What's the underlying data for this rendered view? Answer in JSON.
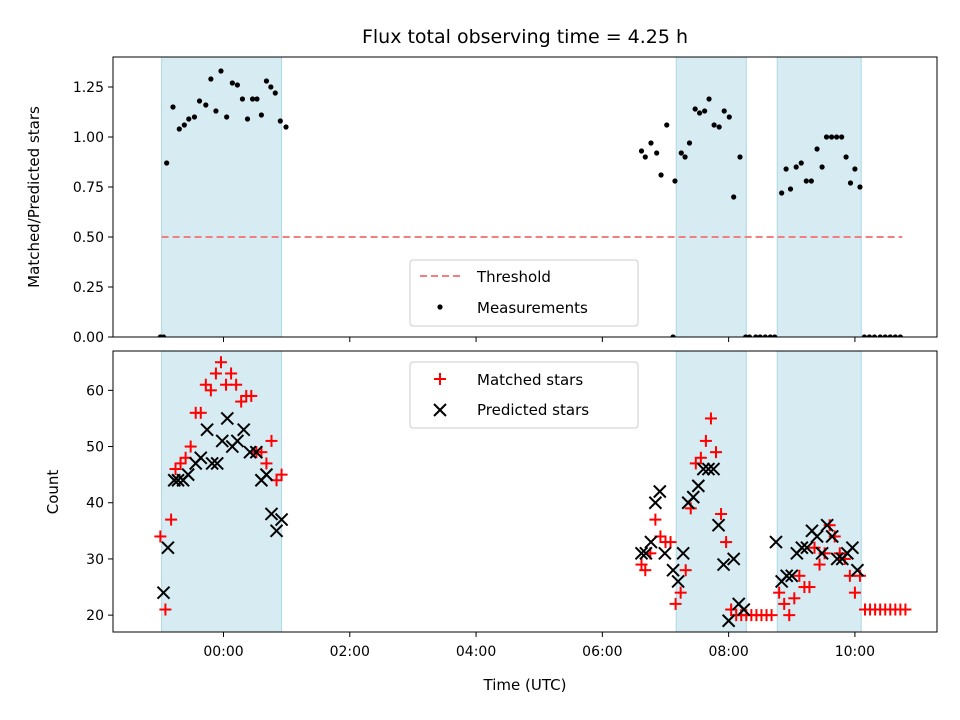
{
  "chart_data": [
    {
      "type": "scatter",
      "title": "Flux total observing time = 4.25 h",
      "ylabel": "Matched/Predicted stars",
      "xlabel": "",
      "xlim": [
        -1.75,
        11.3
      ],
      "ylim": [
        0.0,
        1.4
      ],
      "yticks": [
        0.0,
        0.25,
        0.5,
        0.75,
        1.0,
        1.25
      ],
      "ytick_labels": [
        "0.00",
        "0.25",
        "0.50",
        "0.75",
        "1.00",
        "1.25"
      ],
      "xticks": [
        0,
        2,
        4,
        6,
        8,
        10
      ],
      "legend": {
        "position": "lower-center",
        "entries": [
          "Threshold",
          "Measurements"
        ]
      },
      "spans": [
        [
          -0.98,
          0.92
        ],
        [
          7.17,
          8.28
        ],
        [
          8.77,
          10.1
        ]
      ],
      "threshold": {
        "name": "Threshold",
        "value": 0.5,
        "x_range": [
          -0.98,
          10.75
        ],
        "color": "#f08080"
      },
      "series": [
        {
          "name": "Measurements",
          "color": "#000000",
          "x": [
            -0.95,
            -0.9,
            -0.8,
            -0.7,
            -0.62,
            -0.55,
            -0.46,
            -0.38,
            -0.28,
            -0.2,
            -0.12,
            -0.04,
            0.05,
            0.14,
            0.22,
            0.3,
            0.38,
            0.46,
            0.53,
            0.6,
            0.68,
            0.75,
            0.82,
            0.9,
            0.99,
            6.62,
            6.68,
            6.77,
            6.86,
            6.93,
            7.02,
            7.15,
            7.25,
            7.31,
            7.38,
            7.47,
            7.54,
            7.62,
            7.69,
            7.77,
            7.85,
            7.93,
            8.01,
            8.08,
            8.18,
            8.27,
            8.84,
            8.91,
            8.98,
            9.07,
            9.15,
            9.23,
            9.31,
            9.4,
            9.48,
            9.55,
            9.63,
            9.71,
            9.79,
            9.86,
            9.93,
            10.0,
            10.08
          ],
          "y": [
            0.0,
            0.87,
            1.15,
            1.04,
            1.06,
            1.09,
            1.1,
            1.18,
            1.16,
            1.29,
            1.13,
            1.33,
            1.1,
            1.27,
            1.26,
            1.19,
            1.09,
            1.19,
            1.19,
            1.11,
            1.28,
            1.25,
            1.22,
            1.08,
            1.05,
            0.93,
            0.9,
            0.97,
            0.92,
            0.81,
            1.06,
            0.78,
            0.92,
            0.9,
            0.97,
            1.14,
            1.12,
            1.13,
            1.19,
            1.06,
            1.05,
            1.13,
            1.1,
            0.7,
            0.9,
            0.0,
            0.72,
            0.84,
            0.74,
            0.85,
            0.87,
            0.78,
            0.78,
            0.94,
            0.85,
            1.0,
            1.0,
            1.0,
            1.0,
            0.9,
            0.77,
            0.84,
            0.75
          ]
        },
        {
          "name": "Measurements (zero)",
          "color": "#000000",
          "x": [
            -1.0,
            7.12,
            8.33,
            8.43,
            8.5,
            8.58,
            8.66,
            8.73,
            10.15,
            10.23,
            10.31,
            10.4,
            10.48,
            10.56,
            10.64,
            10.72
          ],
          "y": [
            0,
            0,
            0,
            0,
            0,
            0,
            0,
            0,
            0,
            0,
            0,
            0,
            0,
            0,
            0,
            0
          ]
        }
      ]
    },
    {
      "type": "scatter",
      "title": "",
      "ylabel": "Count",
      "xlabel": "Time (UTC)",
      "xlim": [
        -1.75,
        11.3
      ],
      "ylim": [
        17,
        67
      ],
      "yticks": [
        20,
        30,
        40,
        50,
        60
      ],
      "ytick_labels": [
        "20",
        "30",
        "40",
        "50",
        "60"
      ],
      "xticks": [
        0,
        2,
        4,
        6,
        8,
        10
      ],
      "xtick_labels": [
        "00:00",
        "02:00",
        "04:00",
        "06:00",
        "08:00",
        "10:00"
      ],
      "legend": {
        "position": "upper-center",
        "entries": [
          "Matched stars",
          "Predicted stars"
        ]
      },
      "spans": [
        [
          -0.98,
          0.92
        ],
        [
          7.17,
          8.28
        ],
        [
          8.77,
          10.1
        ]
      ],
      "series": [
        {
          "name": "Matched stars",
          "color": "#ff0000",
          "marker": "plus",
          "x": [
            -1.0,
            -0.92,
            -0.83,
            -0.76,
            -0.68,
            -0.6,
            -0.52,
            -0.44,
            -0.36,
            -0.28,
            -0.2,
            -0.12,
            -0.04,
            0.04,
            0.12,
            0.2,
            0.28,
            0.36,
            0.44,
            0.52,
            0.6,
            0.68,
            0.76,
            0.84,
            0.92,
            6.62,
            6.68,
            6.76,
            6.84,
            6.92,
            7.0,
            7.08,
            7.16,
            7.24,
            7.32,
            7.4,
            7.48,
            7.56,
            7.64,
            7.72,
            7.8,
            7.88,
            7.96,
            8.04,
            8.12,
            8.2,
            8.28,
            8.36,
            8.44,
            8.52,
            8.6,
            8.68,
            8.8,
            8.88,
            8.96,
            9.04,
            9.12,
            9.2,
            9.28,
            9.36,
            9.44,
            9.52,
            9.6,
            9.68,
            9.76,
            9.84,
            9.92,
            10.0,
            10.08,
            10.16,
            10.24,
            10.32,
            10.4,
            10.48,
            10.56,
            10.64,
            10.72,
            10.8
          ],
          "y": [
            34,
            21,
            37,
            46,
            47,
            48,
            50,
            56,
            56,
            61,
            60,
            63,
            65,
            61,
            63,
            61,
            58,
            59,
            59,
            49,
            49,
            47,
            51,
            44,
            45,
            29,
            28,
            31,
            37,
            34,
            33,
            33,
            22,
            24,
            28,
            39,
            47,
            48,
            51,
            55,
            49,
            38,
            33,
            21,
            20,
            20,
            20,
            20,
            20,
            20,
            20,
            20,
            24,
            22,
            20,
            23,
            27,
            25,
            25,
            32,
            29,
            31,
            36,
            34,
            31,
            30,
            27,
            24,
            27,
            21,
            21,
            21,
            21,
            21,
            21,
            21,
            21,
            21
          ]
        },
        {
          "name": "Predicted stars",
          "color": "#000000",
          "marker": "x",
          "x": [
            -0.95,
            -0.88,
            -0.78,
            -0.72,
            -0.64,
            -0.56,
            -0.44,
            -0.36,
            -0.26,
            -0.18,
            -0.1,
            -0.02,
            0.06,
            0.14,
            0.22,
            0.32,
            0.42,
            0.52,
            0.6,
            0.68,
            0.76,
            0.84,
            0.92,
            6.62,
            6.69,
            6.77,
            6.84,
            6.91,
            6.99,
            7.12,
            7.2,
            7.28,
            7.36,
            7.44,
            7.52,
            7.6,
            7.68,
            7.76,
            7.84,
            7.92,
            8.0,
            8.08,
            8.16,
            8.24,
            8.75,
            8.84,
            8.92,
            9.0,
            9.08,
            9.16,
            9.24,
            9.32,
            9.4,
            9.48,
            9.56,
            9.64,
            9.72,
            9.8,
            9.88,
            9.96,
            10.04
          ],
          "y": [
            24,
            32,
            44,
            44,
            44,
            45,
            47,
            48,
            53,
            47,
            47,
            51,
            55,
            50,
            51,
            53,
            49,
            49,
            44,
            45,
            38,
            35,
            37,
            31,
            31,
            33,
            40,
            42,
            31,
            28,
            26,
            31,
            40,
            41,
            43,
            46,
            46,
            46,
            36,
            29,
            19,
            30,
            22,
            21,
            33,
            26,
            27,
            27,
            31,
            32,
            32,
            35,
            34,
            31,
            36,
            34,
            30,
            30,
            31,
            32,
            28
          ]
        }
      ]
    }
  ]
}
